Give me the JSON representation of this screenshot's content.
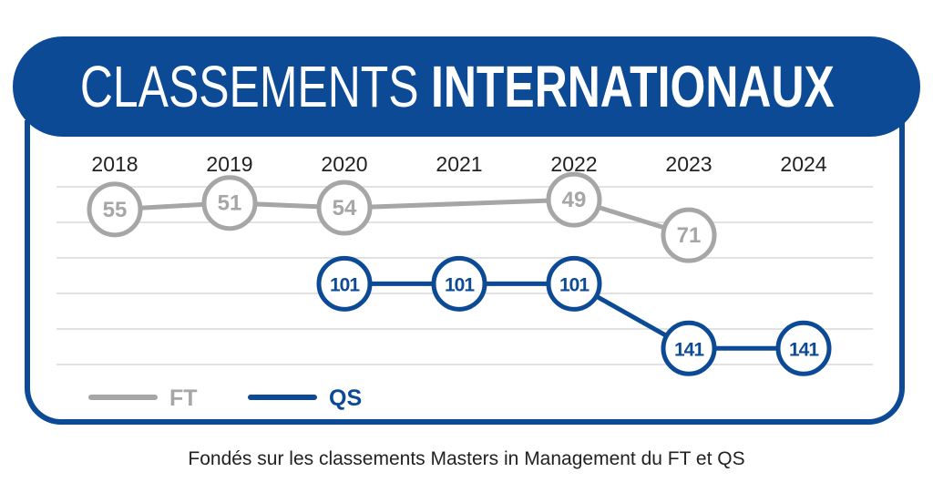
{
  "header": {
    "title_light": "CLASSEMENTS",
    "title_bold": "INTERNATIONAUX"
  },
  "caption": "Fondés sur les classements Masters in Management du FT et QS",
  "colors": {
    "brand": "#0d4a96",
    "ft": "#a6a6a6",
    "grid": "#d9d9d9",
    "text": "#222222"
  },
  "chart_data": {
    "type": "line",
    "title": "CLASSEMENTS INTERNATIONAUX",
    "categories": [
      "2018",
      "2019",
      "2020",
      "2021",
      "2022",
      "2023",
      "2024"
    ],
    "y_inverted": true,
    "ylim": [
      41,
      151
    ],
    "series": [
      {
        "name": "FT",
        "values": [
          55,
          51,
          54,
          null,
          49,
          71,
          null
        ]
      },
      {
        "name": "QS",
        "values": [
          null,
          null,
          101,
          101,
          101,
          141,
          141
        ]
      }
    ],
    "legend": [
      "FT",
      "QS"
    ],
    "legend_position": "bottom-left",
    "grid": true
  }
}
